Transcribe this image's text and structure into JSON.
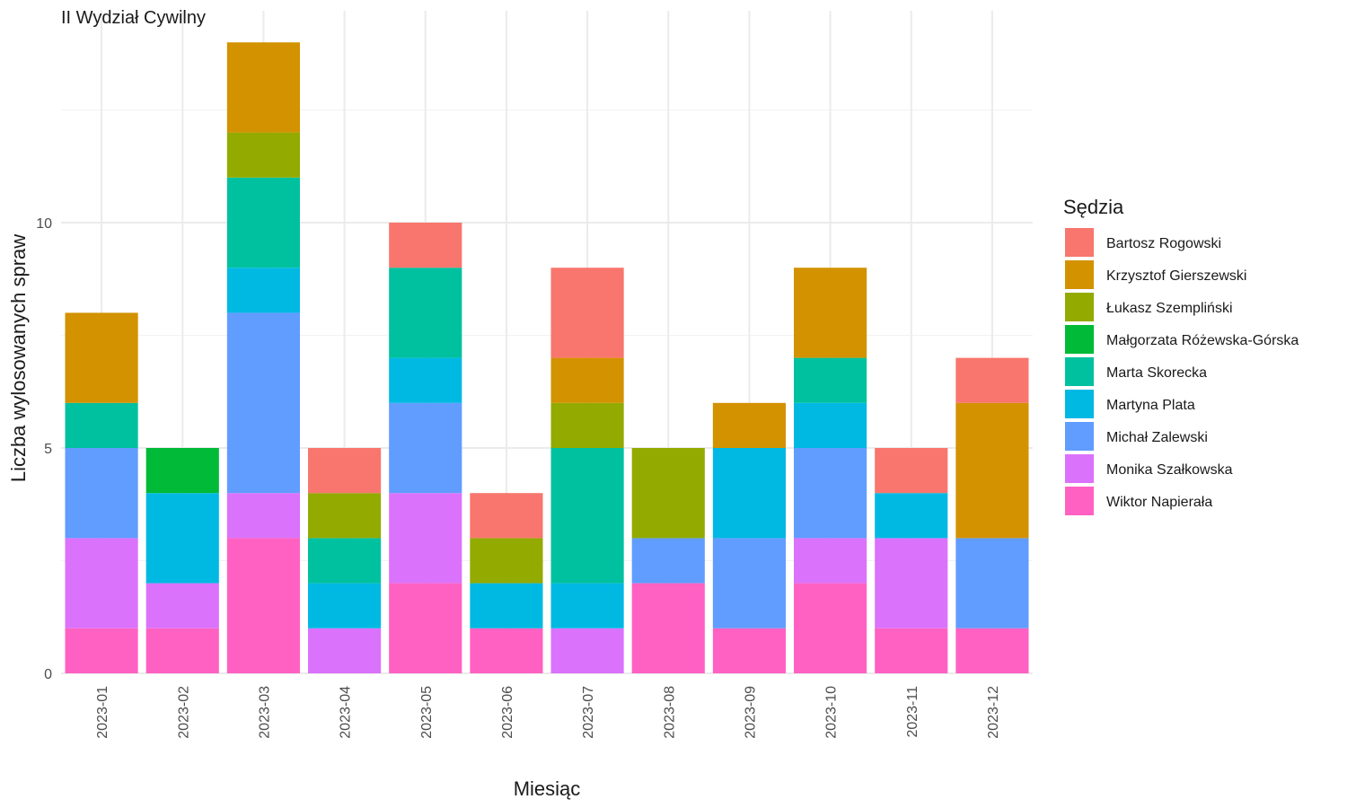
{
  "chart_data": {
    "type": "bar",
    "stacked": true,
    "title": "II Wydział Cywilny",
    "xlabel": "Miesiąc",
    "ylabel": "Liczba wylosowanych spraw",
    "ylim": [
      0,
      14
    ],
    "yticks": [
      0,
      5,
      10
    ],
    "grid": true,
    "legend": {
      "title": "Sędzia",
      "placement": "right"
    },
    "categories": [
      "2023-01",
      "2023-02",
      "2023-03",
      "2023-04",
      "2023-05",
      "2023-06",
      "2023-07",
      "2023-08",
      "2023-09",
      "2023-10",
      "2023-11",
      "2023-12"
    ],
    "series": [
      {
        "name": "Bartosz Rogowski",
        "color": "#F8766D",
        "values": [
          0,
          0,
          0,
          1,
          1,
          1,
          2,
          0,
          0,
          0,
          1,
          1
        ]
      },
      {
        "name": "Krzysztof Gierszewski",
        "color": "#D39200",
        "values": [
          2,
          0,
          2,
          0,
          0,
          0,
          1,
          0,
          1,
          2,
          0,
          3
        ]
      },
      {
        "name": "Łukasz Szempliński",
        "color": "#93AA00",
        "values": [
          0,
          0,
          1,
          1,
          0,
          1,
          1,
          2,
          0,
          0,
          0,
          0
        ]
      },
      {
        "name": "Małgorzata Różewska-Górska",
        "color": "#00BA38",
        "values": [
          0,
          1,
          0,
          0,
          0,
          0,
          0,
          0,
          0,
          0,
          0,
          0
        ]
      },
      {
        "name": "Marta Skorecka",
        "color": "#00C19F",
        "values": [
          1,
          0,
          2,
          1,
          2,
          0,
          3,
          0,
          0,
          1,
          0,
          0
        ]
      },
      {
        "name": "Martyna Plata",
        "color": "#00B9E3",
        "values": [
          0,
          2,
          1,
          1,
          1,
          1,
          1,
          0,
          2,
          1,
          1,
          0
        ]
      },
      {
        "name": "Michał Zalewski",
        "color": "#619CFF",
        "values": [
          2,
          0,
          4,
          0,
          2,
          0,
          0,
          1,
          2,
          2,
          0,
          2
        ]
      },
      {
        "name": "Monika Szałkowska",
        "color": "#DB72FB",
        "values": [
          2,
          1,
          1,
          1,
          2,
          0,
          1,
          0,
          0,
          1,
          2,
          0
        ]
      },
      {
        "name": "Wiktor Napierała",
        "color": "#FF61C3",
        "values": [
          1,
          1,
          3,
          0,
          2,
          1,
          0,
          2,
          1,
          2,
          1,
          1
        ]
      }
    ]
  }
}
